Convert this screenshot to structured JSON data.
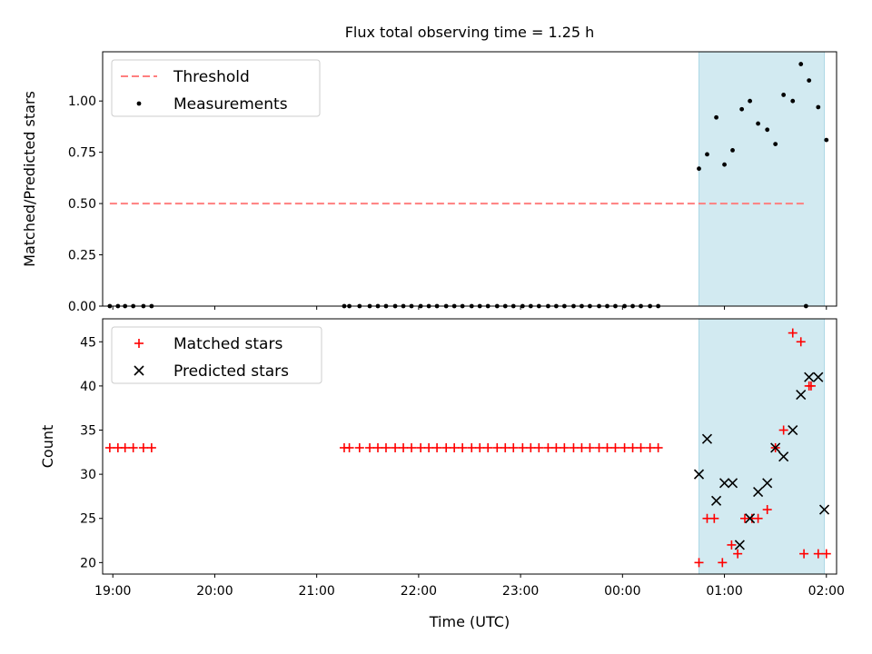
{
  "chart_data": [
    {
      "type": "scatter",
      "title": "Flux total observing time = 1.25 h",
      "xlabel": "",
      "ylabel": "Matched/Predicted stars",
      "xlim": [
        18.9,
        26.1
      ],
      "ylim": [
        0.0,
        1.24
      ],
      "yticks": [
        0.0,
        0.25,
        0.5,
        0.75,
        1.0
      ],
      "ytick_labels": [
        "0.00",
        "0.25",
        "0.50",
        "0.75",
        "1.00"
      ],
      "legend_placement": "upper-left",
      "shaded_region": {
        "x_start": 24.75,
        "x_end": 25.98,
        "color": "#add8e6"
      },
      "series": [
        {
          "name": "Threshold",
          "kind": "dashed-line",
          "color": "#ff7f7f",
          "x": [
            18.97,
            25.8
          ],
          "y": [
            0.5,
            0.5
          ]
        },
        {
          "name": "Measurements",
          "kind": "dots",
          "color": "#000000",
          "x": [
            18.97,
            19.05,
            19.12,
            19.2,
            19.3,
            19.38,
            21.27,
            21.32,
            21.42,
            21.52,
            21.6,
            21.68,
            21.77,
            21.85,
            21.93,
            22.02,
            22.1,
            22.18,
            22.27,
            22.35,
            22.43,
            22.52,
            22.6,
            22.68,
            22.77,
            22.85,
            22.93,
            23.02,
            23.1,
            23.18,
            23.27,
            23.35,
            23.43,
            23.52,
            23.6,
            23.68,
            23.77,
            23.85,
            23.93,
            24.02,
            24.1,
            24.18,
            24.27,
            24.35,
            24.75,
            24.83,
            24.92,
            25.0,
            25.08,
            25.17,
            25.25,
            25.33,
            25.42,
            25.5,
            25.58,
            25.67,
            25.75,
            25.83,
            25.92,
            26.0,
            25.8
          ],
          "y": [
            0,
            0,
            0,
            0,
            0,
            0,
            0,
            0,
            0,
            0,
            0,
            0,
            0,
            0,
            0,
            0,
            0,
            0,
            0,
            0,
            0,
            0,
            0,
            0,
            0,
            0,
            0,
            0,
            0,
            0,
            0,
            0,
            0,
            0,
            0,
            0,
            0,
            0,
            0,
            0,
            0,
            0,
            0,
            0,
            0.67,
            0.74,
            0.92,
            0.69,
            0.76,
            0.96,
            1.0,
            0.89,
            0.86,
            0.79,
            1.03,
            1.0,
            1.18,
            1.1,
            0.97,
            0.81,
            0.0
          ]
        }
      ]
    },
    {
      "type": "scatter",
      "title": "",
      "xlabel": "Time (UTC)",
      "ylabel": "Count",
      "xlim": [
        18.9,
        26.1
      ],
      "ylim": [
        18.7,
        47.6
      ],
      "yticks": [
        20,
        25,
        30,
        35,
        40,
        45
      ],
      "ytick_labels": [
        "20",
        "25",
        "30",
        "35",
        "40",
        "45"
      ],
      "xticks": [
        19,
        20,
        21,
        22,
        23,
        24,
        25,
        26
      ],
      "xtick_labels": [
        "19:00",
        "20:00",
        "21:00",
        "22:00",
        "23:00",
        "00:00",
        "01:00",
        "02:00"
      ],
      "legend_placement": "upper-left",
      "shaded_region": {
        "x_start": 24.75,
        "x_end": 25.98,
        "color": "#add8e6"
      },
      "series": [
        {
          "name": "Matched stars",
          "kind": "plus",
          "color": "#ff0000",
          "x": [
            18.97,
            19.05,
            19.12,
            19.2,
            19.3,
            19.38,
            21.27,
            21.32,
            21.42,
            21.52,
            21.6,
            21.68,
            21.77,
            21.85,
            21.93,
            22.02,
            22.1,
            22.18,
            22.27,
            22.35,
            22.43,
            22.52,
            22.6,
            22.68,
            22.77,
            22.85,
            22.93,
            23.02,
            23.1,
            23.18,
            23.27,
            23.35,
            23.43,
            23.52,
            23.6,
            23.68,
            23.77,
            23.85,
            23.93,
            24.02,
            24.1,
            24.18,
            24.27,
            24.35,
            24.75,
            24.83,
            24.9,
            24.98,
            25.07,
            25.13,
            25.2,
            25.27,
            25.33,
            25.42,
            25.5,
            25.58,
            25.67,
            25.75,
            25.83,
            25.92,
            26.0,
            25.85,
            25.78
          ],
          "y": [
            33,
            33,
            33,
            33,
            33,
            33,
            33,
            33,
            33,
            33,
            33,
            33,
            33,
            33,
            33,
            33,
            33,
            33,
            33,
            33,
            33,
            33,
            33,
            33,
            33,
            33,
            33,
            33,
            33,
            33,
            33,
            33,
            33,
            33,
            33,
            33,
            33,
            33,
            33,
            33,
            33,
            33,
            33,
            33,
            20,
            25,
            25,
            20,
            22,
            21,
            25,
            25,
            25,
            26,
            33,
            35,
            46,
            45,
            40,
            21,
            21,
            40,
            21
          ]
        },
        {
          "name": "Predicted stars",
          "kind": "x",
          "color": "#000000",
          "x": [
            24.75,
            24.83,
            24.92,
            25.0,
            25.08,
            25.15,
            25.25,
            25.33,
            25.42,
            25.5,
            25.58,
            25.67,
            25.75,
            25.83,
            25.92,
            25.98
          ],
          "y": [
            30,
            34,
            27,
            29,
            29,
            22,
            25,
            28,
            29,
            33,
            32,
            35,
            39,
            41,
            41,
            26
          ]
        }
      ]
    }
  ]
}
